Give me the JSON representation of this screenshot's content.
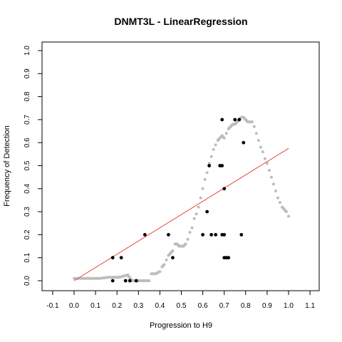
{
  "chart_data": {
    "type": "scatter",
    "title": "DNMT3L - LinearRegression",
    "xlabel": "Progression to H9",
    "ylabel": "Frequency of Detection",
    "xlim": [
      -0.1,
      1.1
    ],
    "ylim": [
      0.0,
      1.0
    ],
    "x_ticks": [
      "-0.1",
      "0.0",
      "0.1",
      "0.2",
      "0.3",
      "0.4",
      "0.5",
      "0.6",
      "0.7",
      "0.8",
      "0.9",
      "1.0",
      "1.1"
    ],
    "y_ticks": [
      "0.0",
      "0.1",
      "0.2",
      "0.3",
      "0.4",
      "0.5",
      "0.6",
      "0.7",
      "0.8",
      "0.9",
      "1.0"
    ],
    "grid": false,
    "legend": "none",
    "colors": {
      "smooth": "#bdbdbd",
      "observed": "#000000",
      "regression": "#e8413a"
    },
    "smooth_curve": {
      "x": [
        0.0,
        0.04,
        0.08,
        0.12,
        0.16,
        0.19,
        0.21,
        0.23,
        0.25,
        0.27,
        0.29,
        0.31,
        0.33,
        0.35,
        0.36,
        0.37,
        0.38,
        0.4,
        0.41,
        0.42,
        0.43,
        0.44,
        0.45,
        0.46,
        0.47,
        0.48,
        0.49,
        0.5,
        0.51,
        0.52,
        0.53,
        0.54,
        0.55,
        0.56,
        0.57,
        0.58,
        0.59,
        0.6,
        0.61,
        0.62,
        0.63,
        0.64,
        0.65,
        0.66,
        0.67,
        0.68,
        0.69,
        0.7,
        0.71,
        0.72,
        0.73,
        0.74,
        0.75,
        0.76,
        0.77,
        0.78,
        0.79,
        0.8,
        0.81,
        0.82,
        0.83,
        0.84,
        0.85,
        0.86,
        0.87,
        0.88,
        0.89,
        0.9,
        0.91,
        0.92,
        0.93,
        0.94,
        0.95,
        0.96,
        0.97,
        0.98,
        0.99,
        1.0
      ],
      "y": [
        0.01,
        0.01,
        0.01,
        0.01,
        0.015,
        0.015,
        0.015,
        0.02,
        0.025,
        0.0,
        0.0,
        0.0,
        0.0,
        0.0,
        0.03,
        0.03,
        0.03,
        0.04,
        0.06,
        0.07,
        0.09,
        0.11,
        0.12,
        0.13,
        0.16,
        0.16,
        0.15,
        0.15,
        0.15,
        0.16,
        0.18,
        0.21,
        0.23,
        0.27,
        0.29,
        0.32,
        0.36,
        0.4,
        0.44,
        0.47,
        0.51,
        0.54,
        0.57,
        0.59,
        0.61,
        0.62,
        0.63,
        0.62,
        0.64,
        0.66,
        0.67,
        0.68,
        0.68,
        0.69,
        0.7,
        0.71,
        0.71,
        0.7,
        0.69,
        0.69,
        0.69,
        0.67,
        0.64,
        0.61,
        0.58,
        0.56,
        0.53,
        0.51,
        0.48,
        0.45,
        0.42,
        0.39,
        0.36,
        0.34,
        0.32,
        0.31,
        0.3,
        0.28
      ]
    },
    "observed_points": {
      "x": [
        0.18,
        0.18,
        0.22,
        0.24,
        0.26,
        0.29,
        0.33,
        0.44,
        0.46,
        0.6,
        0.62,
        0.63,
        0.64,
        0.66,
        0.68,
        0.69,
        0.69,
        0.69,
        0.7,
        0.7,
        0.7,
        0.71,
        0.72,
        0.75,
        0.77,
        0.78,
        0.79
      ],
      "y": [
        0.0,
        0.1,
        0.1,
        0.0,
        0.0,
        0.0,
        0.2,
        0.2,
        0.1,
        0.2,
        0.3,
        0.5,
        0.2,
        0.2,
        0.5,
        0.5,
        0.7,
        0.2,
        0.4,
        0.1,
        0.2,
        0.1,
        0.1,
        0.7,
        0.7,
        0.2,
        0.6
      ]
    },
    "regression_line": {
      "x": [
        0.0,
        1.0
      ],
      "y": [
        0.0,
        0.575
      ]
    }
  }
}
